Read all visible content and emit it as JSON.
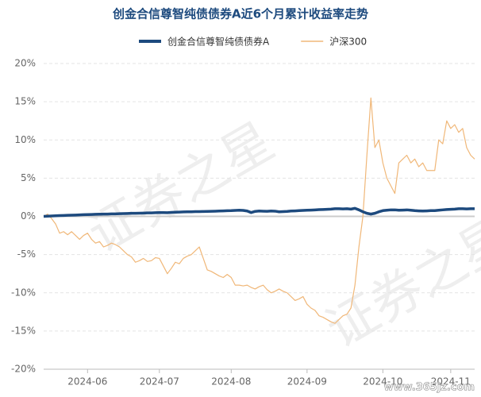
{
  "chart_data": {
    "type": "line",
    "title": "创金合信尊智纯债债券A近6个月累计收益率走势",
    "watermark": "证券之星",
    "source_mark": "www.365jz.com",
    "categories": [
      null,
      null,
      null,
      null,
      null,
      null,
      null,
      null,
      null,
      null,
      null,
      "2024-06",
      null,
      null,
      null,
      null,
      null,
      null,
      null,
      null,
      null,
      null,
      null,
      null,
      null,
      null,
      null,
      null,
      null,
      "2024-07",
      null,
      null,
      null,
      null,
      null,
      null,
      null,
      null,
      null,
      null,
      null,
      null,
      null,
      null,
      null,
      null,
      null,
      "2024-08",
      null,
      null,
      null,
      null,
      null,
      null,
      null,
      null,
      null,
      null,
      null,
      null,
      null,
      null,
      null,
      null,
      null,
      null,
      "2024-09",
      null,
      null,
      null,
      null,
      null,
      null,
      null,
      null,
      null,
      null,
      null,
      null,
      null,
      null,
      null,
      null,
      null,
      null,
      "2024-10",
      null,
      null,
      null,
      null,
      null,
      null,
      null,
      null,
      null,
      null,
      null,
      null,
      null,
      null,
      null,
      null,
      "2024-11",
      null,
      null,
      null,
      null,
      null,
      null
    ],
    "series": [
      {
        "name": "创金合信尊智纯债债券A",
        "color": "#1d4a7e",
        "values": [
          0,
          0.02,
          0.05,
          0.08,
          0.1,
          0.12,
          0.14,
          0.15,
          0.17,
          0.2,
          0.22,
          0.24,
          0.25,
          0.27,
          0.28,
          0.3,
          0.3,
          0.32,
          0.33,
          0.35,
          0.36,
          0.38,
          0.4,
          0.4,
          0.42,
          0.43,
          0.45,
          0.46,
          0.48,
          0.5,
          0.5,
          0.48,
          0.52,
          0.55,
          0.56,
          0.58,
          0.6,
          0.6,
          0.62,
          0.63,
          0.64,
          0.65,
          0.66,
          0.68,
          0.7,
          0.72,
          0.74,
          0.75,
          0.78,
          0.8,
          0.78,
          0.7,
          0.5,
          0.65,
          0.7,
          0.68,
          0.66,
          0.7,
          0.68,
          0.6,
          0.62,
          0.65,
          0.7,
          0.72,
          0.75,
          0.78,
          0.8,
          0.82,
          0.85,
          0.88,
          0.9,
          0.92,
          0.95,
          1.0,
          1.0,
          0.98,
          1.0,
          0.95,
          1.05,
          0.85,
          0.6,
          0.4,
          0.3,
          0.4,
          0.6,
          0.75,
          0.8,
          0.85,
          0.85,
          0.8,
          0.82,
          0.85,
          0.8,
          0.75,
          0.72,
          0.7,
          0.72,
          0.75,
          0.75,
          0.8,
          0.85,
          0.9,
          0.92,
          0.95,
          1.0,
          1.0,
          0.98,
          1.0,
          1.0
        ]
      },
      {
        "name": "沪深300",
        "color": "#f0b778",
        "values": [
          0,
          0.3,
          -0.3,
          -1,
          -2.2,
          -2,
          -2.4,
          -2,
          -2.5,
          -3,
          -2.5,
          -2.2,
          -3,
          -3.5,
          -3.3,
          -4,
          -3.8,
          -3.5,
          -3.7,
          -4,
          -4.5,
          -5,
          -5.3,
          -6,
          -5.8,
          -5.5,
          -5.9,
          -5.8,
          -5.4,
          -5.5,
          -6.5,
          -7.5,
          -6.8,
          -6,
          -6.2,
          -5.5,
          -5.2,
          -5,
          -4.5,
          -4,
          -5.5,
          -7,
          -7.2,
          -7.5,
          -7.8,
          -8,
          -7.6,
          -8,
          -9,
          -9,
          -9.1,
          -9,
          -9.3,
          -9.5,
          -9.2,
          -9,
          -9.6,
          -10,
          -9.8,
          -9.5,
          -9.8,
          -10,
          -10.5,
          -11,
          -10.8,
          -10.5,
          -11.5,
          -12,
          -12.3,
          -13,
          -13.2,
          -13.5,
          -13.8,
          -14,
          -13.5,
          -13,
          -12.8,
          -12,
          -9,
          -4,
          0,
          8,
          15.5,
          9,
          10,
          7,
          5,
          4,
          3,
          7,
          7.5,
          8,
          7,
          7.5,
          6.5,
          7,
          6,
          6,
          6,
          10,
          9.5,
          12.5,
          11.5,
          12,
          11,
          11.5,
          9,
          8,
          7.5
        ]
      }
    ],
    "ylim": [
      -20,
      20
    ],
    "yticks": [
      {
        "value": -20,
        "label": "-20%"
      },
      {
        "value": -15,
        "label": "-15%"
      },
      {
        "value": -10,
        "label": "-10%"
      },
      {
        "value": -5,
        "label": "-5%"
      },
      {
        "value": 0,
        "label": "0%"
      },
      {
        "value": 5,
        "label": "5%"
      },
      {
        "value": 10,
        "label": "10%"
      },
      {
        "value": 15,
        "label": "15%"
      },
      {
        "value": 20,
        "label": "20%"
      }
    ],
    "grid": true
  }
}
